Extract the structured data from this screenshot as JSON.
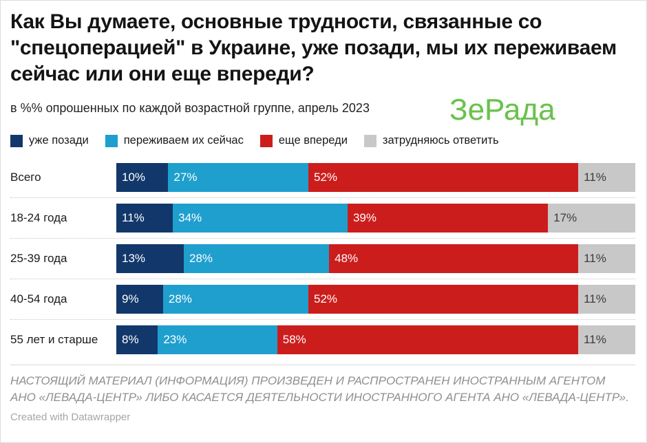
{
  "header": {
    "title": "Как Вы думаете, основные трудности, связанные со \"спецоперацией\" в Украине, уже позади, мы их переживаем сейчас или они еще впереди?",
    "subtitle": "в %% опрошенных по каждой возрастной группе, апрель 2023",
    "watermark": "ЗеРада"
  },
  "colors": {
    "already_behind": "#12386b",
    "experiencing_now": "#1f9fce",
    "still_ahead": "#cc1d1d",
    "hard_to_answer": "#c8c8c8",
    "watermark_green": "#6cbf4f"
  },
  "legend": [
    {
      "key": "already-behind",
      "label": "уже позади",
      "color": "#12386b"
    },
    {
      "key": "experiencing-now",
      "label": "переживаем их сейчас",
      "color": "#1f9fce"
    },
    {
      "key": "still-ahead",
      "label": "еще впереди",
      "color": "#cc1d1d"
    },
    {
      "key": "hard-to-answer",
      "label": "затрудняюсь ответить",
      "color": "#c8c8c8"
    }
  ],
  "chart_data": {
    "type": "bar",
    "orientation": "horizontal-stacked",
    "title": "Как Вы думаете, основные трудности, связанные со \"спецоперацией\" в Украине, уже позади, мы их переживаем сейчас или они еще впереди?",
    "subtitle": "в %% опрошенных по каждой возрастной группе, апрель 2023",
    "categories": [
      "Всего",
      "18-24 года",
      "25-39 года",
      "40-54 года",
      "55 лет и старше"
    ],
    "series": [
      {
        "name": "уже позади",
        "key": "already-behind",
        "color": "#12386b",
        "label_color": "#ffffff",
        "values": [
          10,
          11,
          13,
          9,
          8
        ]
      },
      {
        "name": "переживаем их сейчас",
        "key": "experiencing-now",
        "color": "#1f9fce",
        "label_color": "#ffffff",
        "values": [
          27,
          34,
          28,
          28,
          23
        ]
      },
      {
        "name": "еще впереди",
        "key": "still-ahead",
        "color": "#cc1d1d",
        "label_color": "#ffffff",
        "values": [
          52,
          39,
          48,
          52,
          58
        ]
      },
      {
        "name": "затрудняюсь ответить",
        "key": "hard-to-answer",
        "color": "#c8c8c8",
        "label_color": "#3c3c3c",
        "values": [
          11,
          17,
          11,
          11,
          11
        ]
      }
    ],
    "value_suffix": "%",
    "xlim": [
      0,
      100
    ],
    "grid": false,
    "legend_position": "top"
  },
  "footer": {
    "disclaimer": "НАСТОЯЩИЙ МАТЕРИАЛ (ИНФОРМАЦИЯ) ПРОИЗВЕДЕН И РАСПРОСТРАНЕН ИНОСТРАННЫМ АГЕНТОМ АНО «ЛЕВАДА-ЦЕНТР» ЛИБО КАСАЕТСЯ ДЕЯТЕЛЬНОСТИ ИНОСТРАННОГО АГЕНТА АНО «ЛЕВАДА-ЦЕНТР».",
    "credit": "Created with Datawrapper"
  }
}
